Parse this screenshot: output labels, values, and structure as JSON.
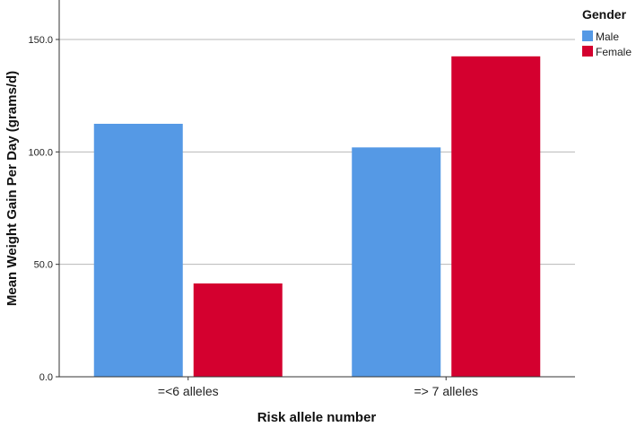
{
  "chart_data": {
    "type": "bar",
    "title": "",
    "xlabel": "Risk allele number",
    "ylabel": "Mean Weight Gain Per Day (grams/d)",
    "categories": [
      "=<6 alleles",
      "=> 7 alleles"
    ],
    "series": [
      {
        "name": "Male",
        "values": [
          112.5,
          102.0
        ],
        "color": "#5599e5"
      },
      {
        "name": "Female",
        "values": [
          41.5,
          142.5
        ],
        "color": "#d4002f"
      }
    ],
    "ylim": [
      0,
      150
    ],
    "yticks": [
      {
        "value": 0,
        "label": "0.0"
      },
      {
        "value": 50,
        "label": "50.0"
      },
      {
        "value": 100,
        "label": "100.0"
      },
      {
        "value": 150,
        "label": "150.0"
      }
    ],
    "grid": true,
    "legend": {
      "title": "Gender",
      "placement": "top-right"
    }
  }
}
